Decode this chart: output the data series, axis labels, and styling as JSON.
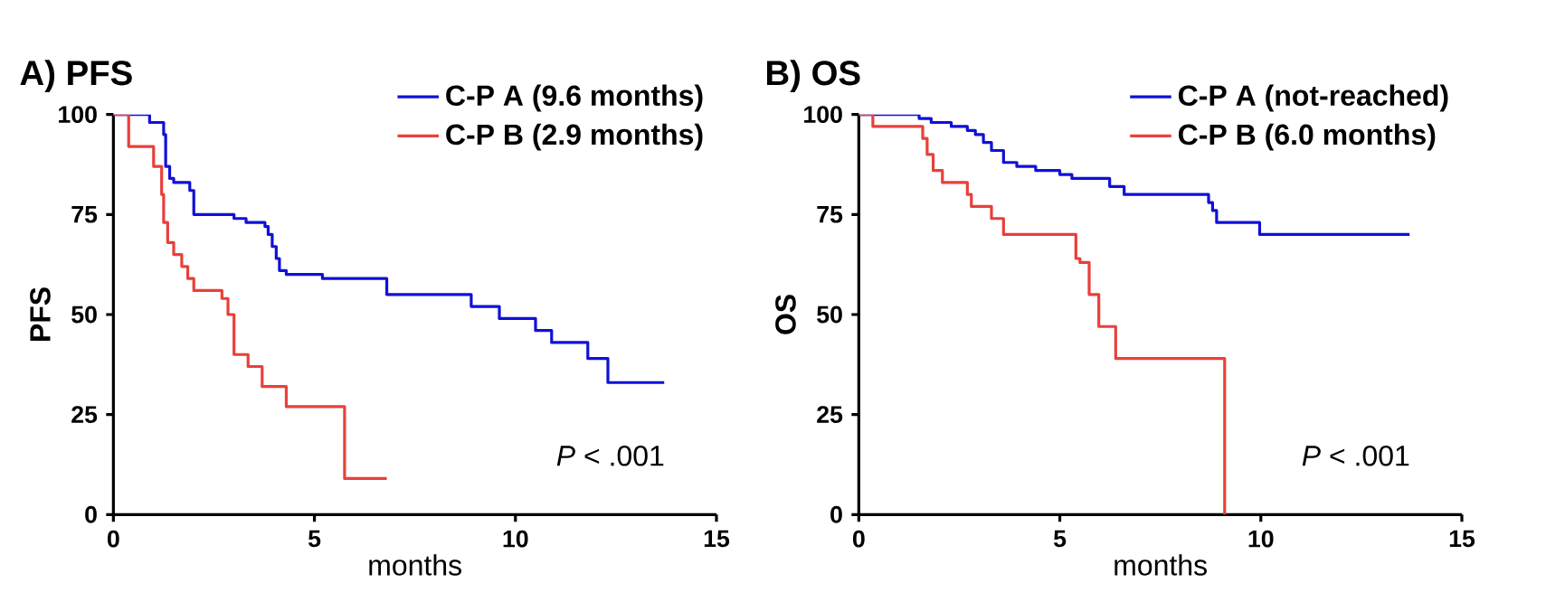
{
  "chart_data": [
    {
      "type": "step",
      "title": "A) PFS",
      "xlabel": "months",
      "ylabel": "PFS",
      "xlim": [
        0,
        15
      ],
      "ylim": [
        0,
        100
      ],
      "xticks": [
        0,
        5,
        10,
        15
      ],
      "yticks": [
        0,
        25,
        50,
        75,
        100
      ],
      "legend": "top right",
      "annotations": [
        "*P* < .001"
      ],
      "series": [
        {
          "name": "C-P A (9.6 months)",
          "color": "#1010d8",
          "x": [
            0,
            0.9,
            1.25,
            1.3,
            1.4,
            1.5,
            1.9,
            2.0,
            2.1,
            3.0,
            3.3,
            3.77,
            3.85,
            3.95,
            4.05,
            4.13,
            4.3,
            5.2,
            6.8,
            8.9,
            9.6,
            10.5,
            10.9,
            11.8,
            12.3,
            13.7
          ],
          "values": [
            100,
            98,
            95,
            87,
            84,
            83,
            81,
            75,
            75,
            74,
            73,
            72,
            70,
            67,
            64,
            61,
            60,
            59,
            55,
            52,
            49,
            46,
            43,
            39,
            33,
            33
          ]
        },
        {
          "name": "C-P B (2.9 months)",
          "color": "#e8403a",
          "x": [
            0,
            0.38,
            1.0,
            1.2,
            1.25,
            1.35,
            1.5,
            1.7,
            1.85,
            2.0,
            2.7,
            2.85,
            3.0,
            3.35,
            3.7,
            4.3,
            5.75,
            6.8
          ],
          "values": [
            100,
            92,
            87,
            80,
            73,
            68,
            65,
            62,
            59,
            56,
            54,
            50,
            40,
            37,
            32,
            27,
            9,
            9
          ]
        }
      ]
    },
    {
      "type": "step",
      "title": "B) OS",
      "xlabel": "months",
      "ylabel": "OS",
      "xlim": [
        0,
        15
      ],
      "ylim": [
        0,
        100
      ],
      "xticks": [
        0,
        5,
        10,
        15
      ],
      "yticks": [
        0,
        25,
        50,
        75,
        100
      ],
      "legend": "top right",
      "annotations": [
        "*P* < .001"
      ],
      "series": [
        {
          "name": "C-P A (not-reached)",
          "color": "#1010d8",
          "x": [
            0,
            1.5,
            1.8,
            2.3,
            2.7,
            2.9,
            3.1,
            3.3,
            3.6,
            3.93,
            4.4,
            5.0,
            5.3,
            6.24,
            6.6,
            6.9,
            8.7,
            8.8,
            8.9,
            9.97,
            13.7
          ],
          "values": [
            100,
            99,
            98,
            97,
            96,
            95,
            93,
            91,
            88,
            87,
            86,
            85,
            84,
            82,
            80,
            80,
            78,
            76,
            73,
            70,
            70
          ]
        },
        {
          "name": "C-P B (6.0 months)",
          "color": "#e8403a",
          "x": [
            0,
            0.35,
            1.59,
            1.7,
            1.85,
            2.08,
            2.7,
            2.8,
            3.3,
            3.6,
            5.4,
            5.5,
            5.73,
            5.97,
            6.39,
            9.1,
            9.12
          ],
          "values": [
            100,
            97,
            94,
            90,
            86,
            83,
            80,
            77,
            74,
            70,
            64,
            63,
            55,
            47,
            39,
            0,
            0
          ]
        }
      ]
    }
  ]
}
